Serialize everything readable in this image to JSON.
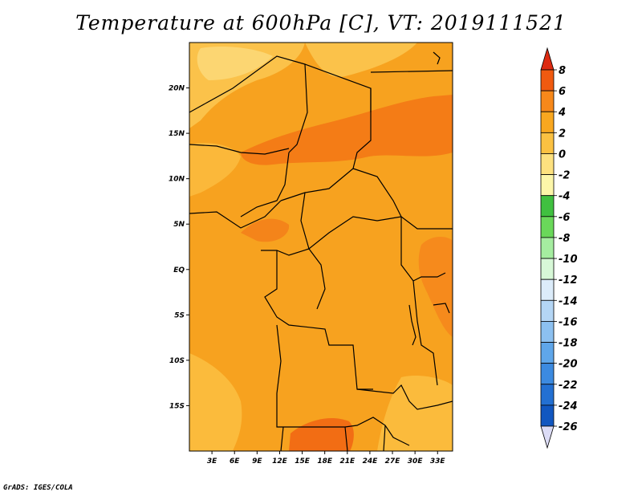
{
  "title": "Temperature at 600hPa [C], VT: 2019111521",
  "credit": "GrADS: IGES/COLA",
  "map": {
    "type": "filled-contour-map",
    "lon_range": [
      0,
      35
    ],
    "lat_range": [
      -20,
      25
    ],
    "x_ticks": [
      {
        "lon": 3,
        "label": "3E"
      },
      {
        "lon": 6,
        "label": "6E"
      },
      {
        "lon": 9,
        "label": "9E"
      },
      {
        "lon": 12,
        "label": "12E"
      },
      {
        "lon": 15,
        "label": "15E"
      },
      {
        "lon": 18,
        "label": "18E"
      },
      {
        "lon": 21,
        "label": "21E"
      },
      {
        "lon": 24,
        "label": "24E"
      },
      {
        "lon": 27,
        "label": "27E"
      },
      {
        "lon": 30,
        "label": "30E"
      },
      {
        "lon": 33,
        "label": "33E"
      }
    ],
    "y_ticks": [
      {
        "lat": 20,
        "label": "20N"
      },
      {
        "lat": 15,
        "label": "15N"
      },
      {
        "lat": 10,
        "label": "10N"
      },
      {
        "lat": 5,
        "label": "5N"
      },
      {
        "lat": 0,
        "label": "EQ"
      },
      {
        "lat": -5,
        "label": "5S"
      },
      {
        "lat": -10,
        "label": "10S"
      },
      {
        "lat": -15,
        "label": "15S"
      }
    ]
  },
  "colorbar": {
    "levels": [
      "8",
      "6",
      "4",
      "2",
      "0",
      "-2",
      "-4",
      "-6",
      "-8",
      "-10",
      "-12",
      "-14",
      "-16",
      "-18",
      "-20",
      "-22",
      "-24",
      "-26"
    ],
    "colors": [
      "#dd2a11",
      "#f05a10",
      "#f7881a",
      "#f9a71f",
      "#fbc142",
      "#fde17f",
      "#fcf6a9",
      "#40c040",
      "#6ad85a",
      "#a5eda0",
      "#d7f8d7",
      "#dcecfa",
      "#b4d6f5",
      "#8cc0f0",
      "#5fa6ea",
      "#3c8ae0",
      "#2370d2",
      "#1157c0",
      "#00107a",
      "#dcdcf6"
    ]
  }
}
